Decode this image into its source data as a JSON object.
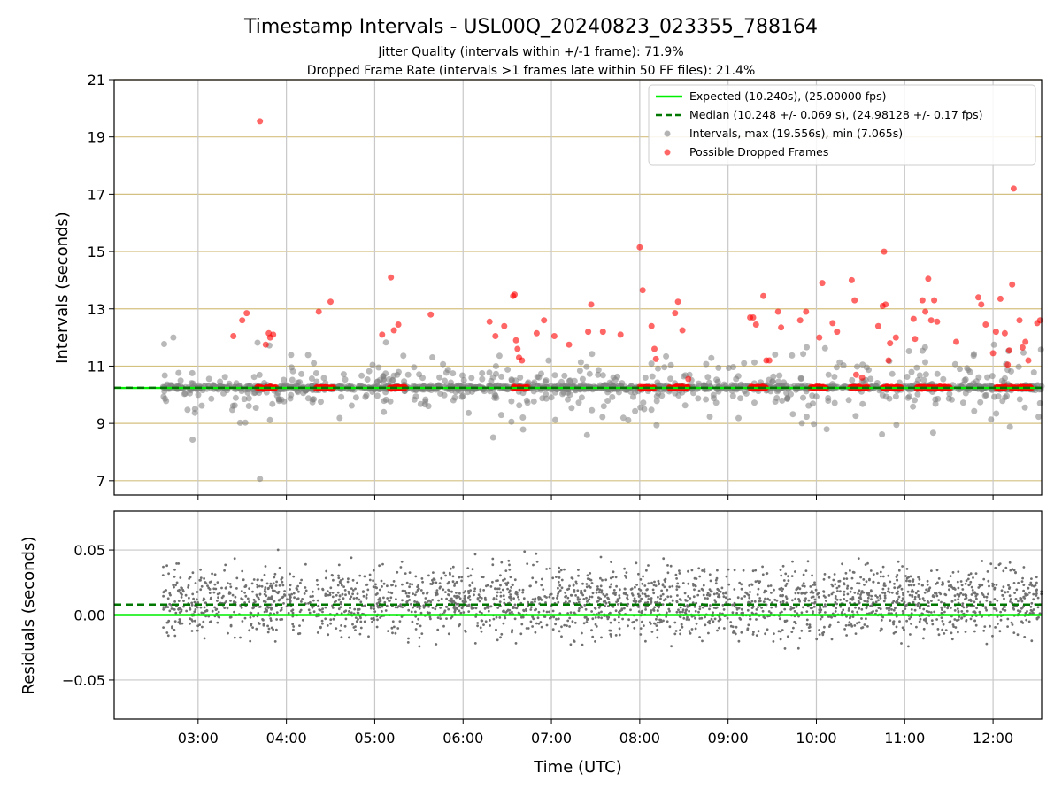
{
  "figure": {
    "title": "Timestamp Intervals - USL00Q_20240823_023355_788164",
    "subtitle_1": "Jitter Quality (intervals within +/-1 frame): 71.9%",
    "subtitle_2": "Dropped Frame Rate (intervals >1 frames late within 50 FF files): 21.4%"
  },
  "colors": {
    "expected": "#00ee00",
    "median": "#007700",
    "intervals": "#808080",
    "dropped": "#ff0000",
    "hgrid": "#d4c080",
    "vgrid": "#c8c8c8"
  },
  "chart_data": [
    {
      "type": "scatter",
      "ylabel": "Intervals (seconds)",
      "xlim": [
        "02:03",
        "12:33"
      ],
      "ylim": [
        6.5,
        21
      ],
      "xgrid": [
        "03:00",
        "04:00",
        "05:00",
        "06:00",
        "07:00",
        "08:00",
        "09:00",
        "10:00",
        "11:00",
        "12:00"
      ],
      "yticks": [
        7,
        9,
        11,
        13,
        15,
        17,
        19,
        21
      ],
      "grid": true,
      "legend_position": "top-right",
      "lines": {
        "expected": {
          "y": 10.24,
          "label": "Expected (10.240s), (25.00000 fps)"
        },
        "median": {
          "y": 10.248,
          "label": "Median (10.248 +/- 0.069 s), (24.98128 +/- 0.17 fps)"
        }
      },
      "series": [
        {
          "name": "Intervals, max (19.556s), min (7.065s)",
          "max": 19.556,
          "min": 7.065
        },
        {
          "name": "Possible Dropped Frames",
          "points": [
            [
              "03:42",
              19.55
            ],
            [
              "03:24",
              12.05
            ],
            [
              "03:30",
              12.6
            ],
            [
              "03:33",
              12.85
            ],
            [
              "03:46",
              11.75
            ],
            [
              "03:49",
              12.0
            ],
            [
              "03:51",
              12.1
            ],
            [
              "03:48",
              12.15
            ],
            [
              "04:22",
              12.9
            ],
            [
              "04:30",
              13.25
            ],
            [
              "05:05",
              12.1
            ],
            [
              "05:11",
              14.1
            ],
            [
              "05:13",
              12.25
            ],
            [
              "05:16",
              12.45
            ],
            [
              "05:38",
              12.8
            ],
            [
              "06:18",
              12.55
            ],
            [
              "06:22",
              12.05
            ],
            [
              "06:28",
              12.4
            ],
            [
              "06:34",
              13.45
            ],
            [
              "06:35",
              13.5
            ],
            [
              "06:36",
              11.9
            ],
            [
              "06:37",
              11.6
            ],
            [
              "06:38",
              11.3
            ],
            [
              "06:40",
              11.2
            ],
            [
              "06:50",
              12.15
            ],
            [
              "06:55",
              12.6
            ],
            [
              "07:02",
              12.05
            ],
            [
              "07:12",
              11.75
            ],
            [
              "07:25",
              12.2
            ],
            [
              "07:27",
              13.15
            ],
            [
              "07:35",
              12.2
            ],
            [
              "07:47",
              12.1
            ],
            [
              "08:00",
              15.15
            ],
            [
              "08:02",
              13.65
            ],
            [
              "08:08",
              12.4
            ],
            [
              "08:10",
              11.6
            ],
            [
              "08:11",
              11.25
            ],
            [
              "08:24",
              12.85
            ],
            [
              "08:26",
              13.25
            ],
            [
              "08:29",
              12.25
            ],
            [
              "08:33",
              10.55
            ],
            [
              "09:15",
              12.7
            ],
            [
              "09:17",
              12.7
            ],
            [
              "09:19",
              12.45
            ],
            [
              "09:24",
              13.45
            ],
            [
              "09:26",
              11.2
            ],
            [
              "09:28",
              11.2
            ],
            [
              "09:34",
              12.9
            ],
            [
              "09:36",
              12.35
            ],
            [
              "09:49",
              12.6
            ],
            [
              "09:53",
              12.9
            ],
            [
              "10:02",
              12.0
            ],
            [
              "10:04",
              13.9
            ],
            [
              "10:11",
              12.5
            ],
            [
              "10:14",
              12.2
            ],
            [
              "10:24",
              14.0
            ],
            [
              "10:26",
              13.3
            ],
            [
              "10:27",
              10.7
            ],
            [
              "10:31",
              10.6
            ],
            [
              "10:42",
              12.4
            ],
            [
              "10:45",
              13.1
            ],
            [
              "10:46",
              15.0
            ],
            [
              "10:47",
              13.15
            ],
            [
              "10:49",
              11.2
            ],
            [
              "10:50",
              11.8
            ],
            [
              "10:54",
              12.0
            ],
            [
              "11:06",
              12.65
            ],
            [
              "11:07",
              11.95
            ],
            [
              "11:12",
              13.3
            ],
            [
              "11:14",
              12.9
            ],
            [
              "11:16",
              14.05
            ],
            [
              "11:18",
              12.6
            ],
            [
              "11:20",
              13.3
            ],
            [
              "11:22",
              12.55
            ],
            [
              "11:35",
              11.85
            ],
            [
              "11:50",
              13.4
            ],
            [
              "11:52",
              13.15
            ],
            [
              "11:55",
              12.45
            ],
            [
              "12:00",
              11.45
            ],
            [
              "12:02",
              12.2
            ],
            [
              "12:05",
              13.35
            ],
            [
              "12:08",
              12.15
            ],
            [
              "12:10",
              11.05
            ],
            [
              "12:11",
              11.55
            ],
            [
              "12:13",
              13.85
            ],
            [
              "12:14",
              17.2
            ],
            [
              "12:18",
              12.6
            ],
            [
              "12:20",
              11.65
            ],
            [
              "12:22",
              11.85
            ],
            [
              "12:24",
              11.2
            ],
            [
              "12:30",
              12.5
            ],
            [
              "12:32",
              12.6
            ]
          ],
          "clusters_at_10_25": [
            [
              "03:40",
              "03:53"
            ],
            [
              "04:20",
              "04:32"
            ],
            [
              "05:10",
              "05:21"
            ],
            [
              "06:34",
              "06:44"
            ],
            [
              "08:00",
              "08:10"
            ],
            [
              "08:20",
              "08:33"
            ],
            [
              "09:15",
              "09:26"
            ],
            [
              "09:56",
              "10:07"
            ],
            [
              "10:23",
              "10:35"
            ],
            [
              "10:45",
              "10:58"
            ],
            [
              "11:08",
              "11:31"
            ],
            [
              "12:02",
              "12:09"
            ],
            [
              "12:12",
              "12:26"
            ]
          ]
        }
      ]
    },
    {
      "type": "scatter",
      "xlabel": "Time (UTC)",
      "ylabel": "Residuals (seconds)",
      "xlim": [
        "02:03",
        "12:33"
      ],
      "ylim": [
        -0.08,
        0.08
      ],
      "xticks": [
        "03:00",
        "04:00",
        "05:00",
        "06:00",
        "07:00",
        "08:00",
        "09:00",
        "10:00",
        "11:00",
        "12:00"
      ],
      "yticks": [
        0.05,
        0.0,
        -0.05
      ],
      "ytick_labels": [
        "0.05",
        "0.00",
        "−0.05"
      ],
      "grid": true,
      "lines": {
        "expected": 0.0,
        "median": 0.008
      },
      "series": [
        {
          "range": [
            -0.08,
            0.08
          ],
          "center": 0.01,
          "spread": 0.022
        }
      ]
    }
  ]
}
